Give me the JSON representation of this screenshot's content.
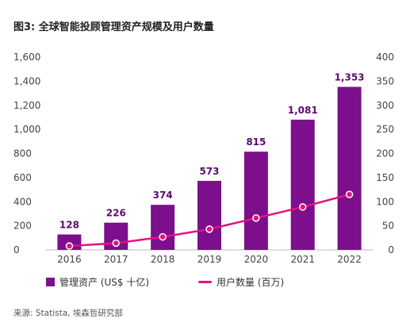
{
  "title": "图3: 全球智能投顾管理资产规模及用户数量",
  "source": "来源: Statista, 埃森哲研究部",
  "chart_data": {
    "type": "bar",
    "categories": [
      "2016",
      "2017",
      "2018",
      "2019",
      "2020",
      "2021",
      "2022"
    ],
    "series": [
      {
        "name": "管理资产 (US$ 十亿)",
        "type": "bar",
        "axis": "left",
        "values": [
          128,
          226,
          374,
          573,
          815,
          1081,
          1353
        ],
        "labels": [
          "128",
          "226",
          "374",
          "573",
          "815",
          "1,081",
          "1,353"
        ],
        "color": "#7c0f8c"
      },
      {
        "name": "用户数量 (百万)",
        "type": "line",
        "axis": "right",
        "values": [
          8,
          14,
          27,
          43,
          66,
          89,
          115
        ],
        "color": "#e3137f"
      }
    ],
    "y_left": {
      "ylim": [
        0,
        1600
      ],
      "ticks": [
        "0",
        "200",
        "400",
        "600",
        "800",
        "1,000",
        "1,200",
        "1,400",
        "1,600"
      ]
    },
    "y_right": {
      "ylim": [
        0,
        400
      ],
      "ticks": [
        "0",
        "50",
        "100",
        "150",
        "200",
        "250",
        "300",
        "350",
        "400"
      ]
    },
    "grid": false,
    "legend_position": "bottom-left"
  }
}
